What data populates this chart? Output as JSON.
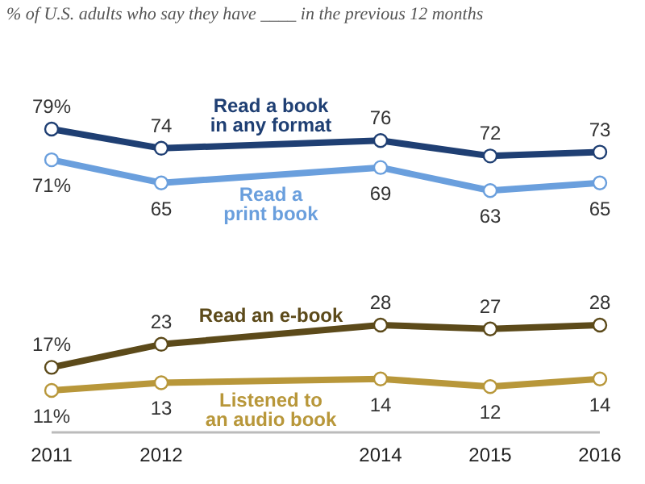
{
  "chart_data": {
    "type": "line",
    "subtitle": "% of U.S. adults who say they have ____ in the previous 12 months",
    "x": [
      2011,
      2012,
      2014,
      2015,
      2016
    ],
    "xlim": [
      2011,
      2016
    ],
    "xticks": [
      2011,
      2012,
      2014,
      2015,
      2016
    ],
    "series": [
      {
        "name": "Read a book in any format",
        "color": "#1f3f73",
        "values": [
          79,
          74,
          76,
          72,
          73
        ],
        "value_labels": [
          "79%",
          "74",
          "76",
          "72",
          "73"
        ]
      },
      {
        "name": "Read a print book",
        "color": "#6a9fdd",
        "values": [
          71,
          65,
          69,
          63,
          65
        ],
        "value_labels": [
          "71%",
          "65",
          "69",
          "63",
          "65"
        ]
      },
      {
        "name": "Read an e-book",
        "color": "#5c4a1a",
        "values": [
          17,
          23,
          28,
          27,
          28
        ],
        "value_labels": [
          "17%",
          "23",
          "28",
          "27",
          "28"
        ]
      },
      {
        "name": "Listened to an audio book",
        "color": "#b8973a",
        "values": [
          11,
          13,
          14,
          12,
          14
        ],
        "value_labels": [
          "11%",
          "13",
          "14",
          "12",
          "14"
        ]
      }
    ],
    "data_labels": true,
    "marker": "circle"
  }
}
